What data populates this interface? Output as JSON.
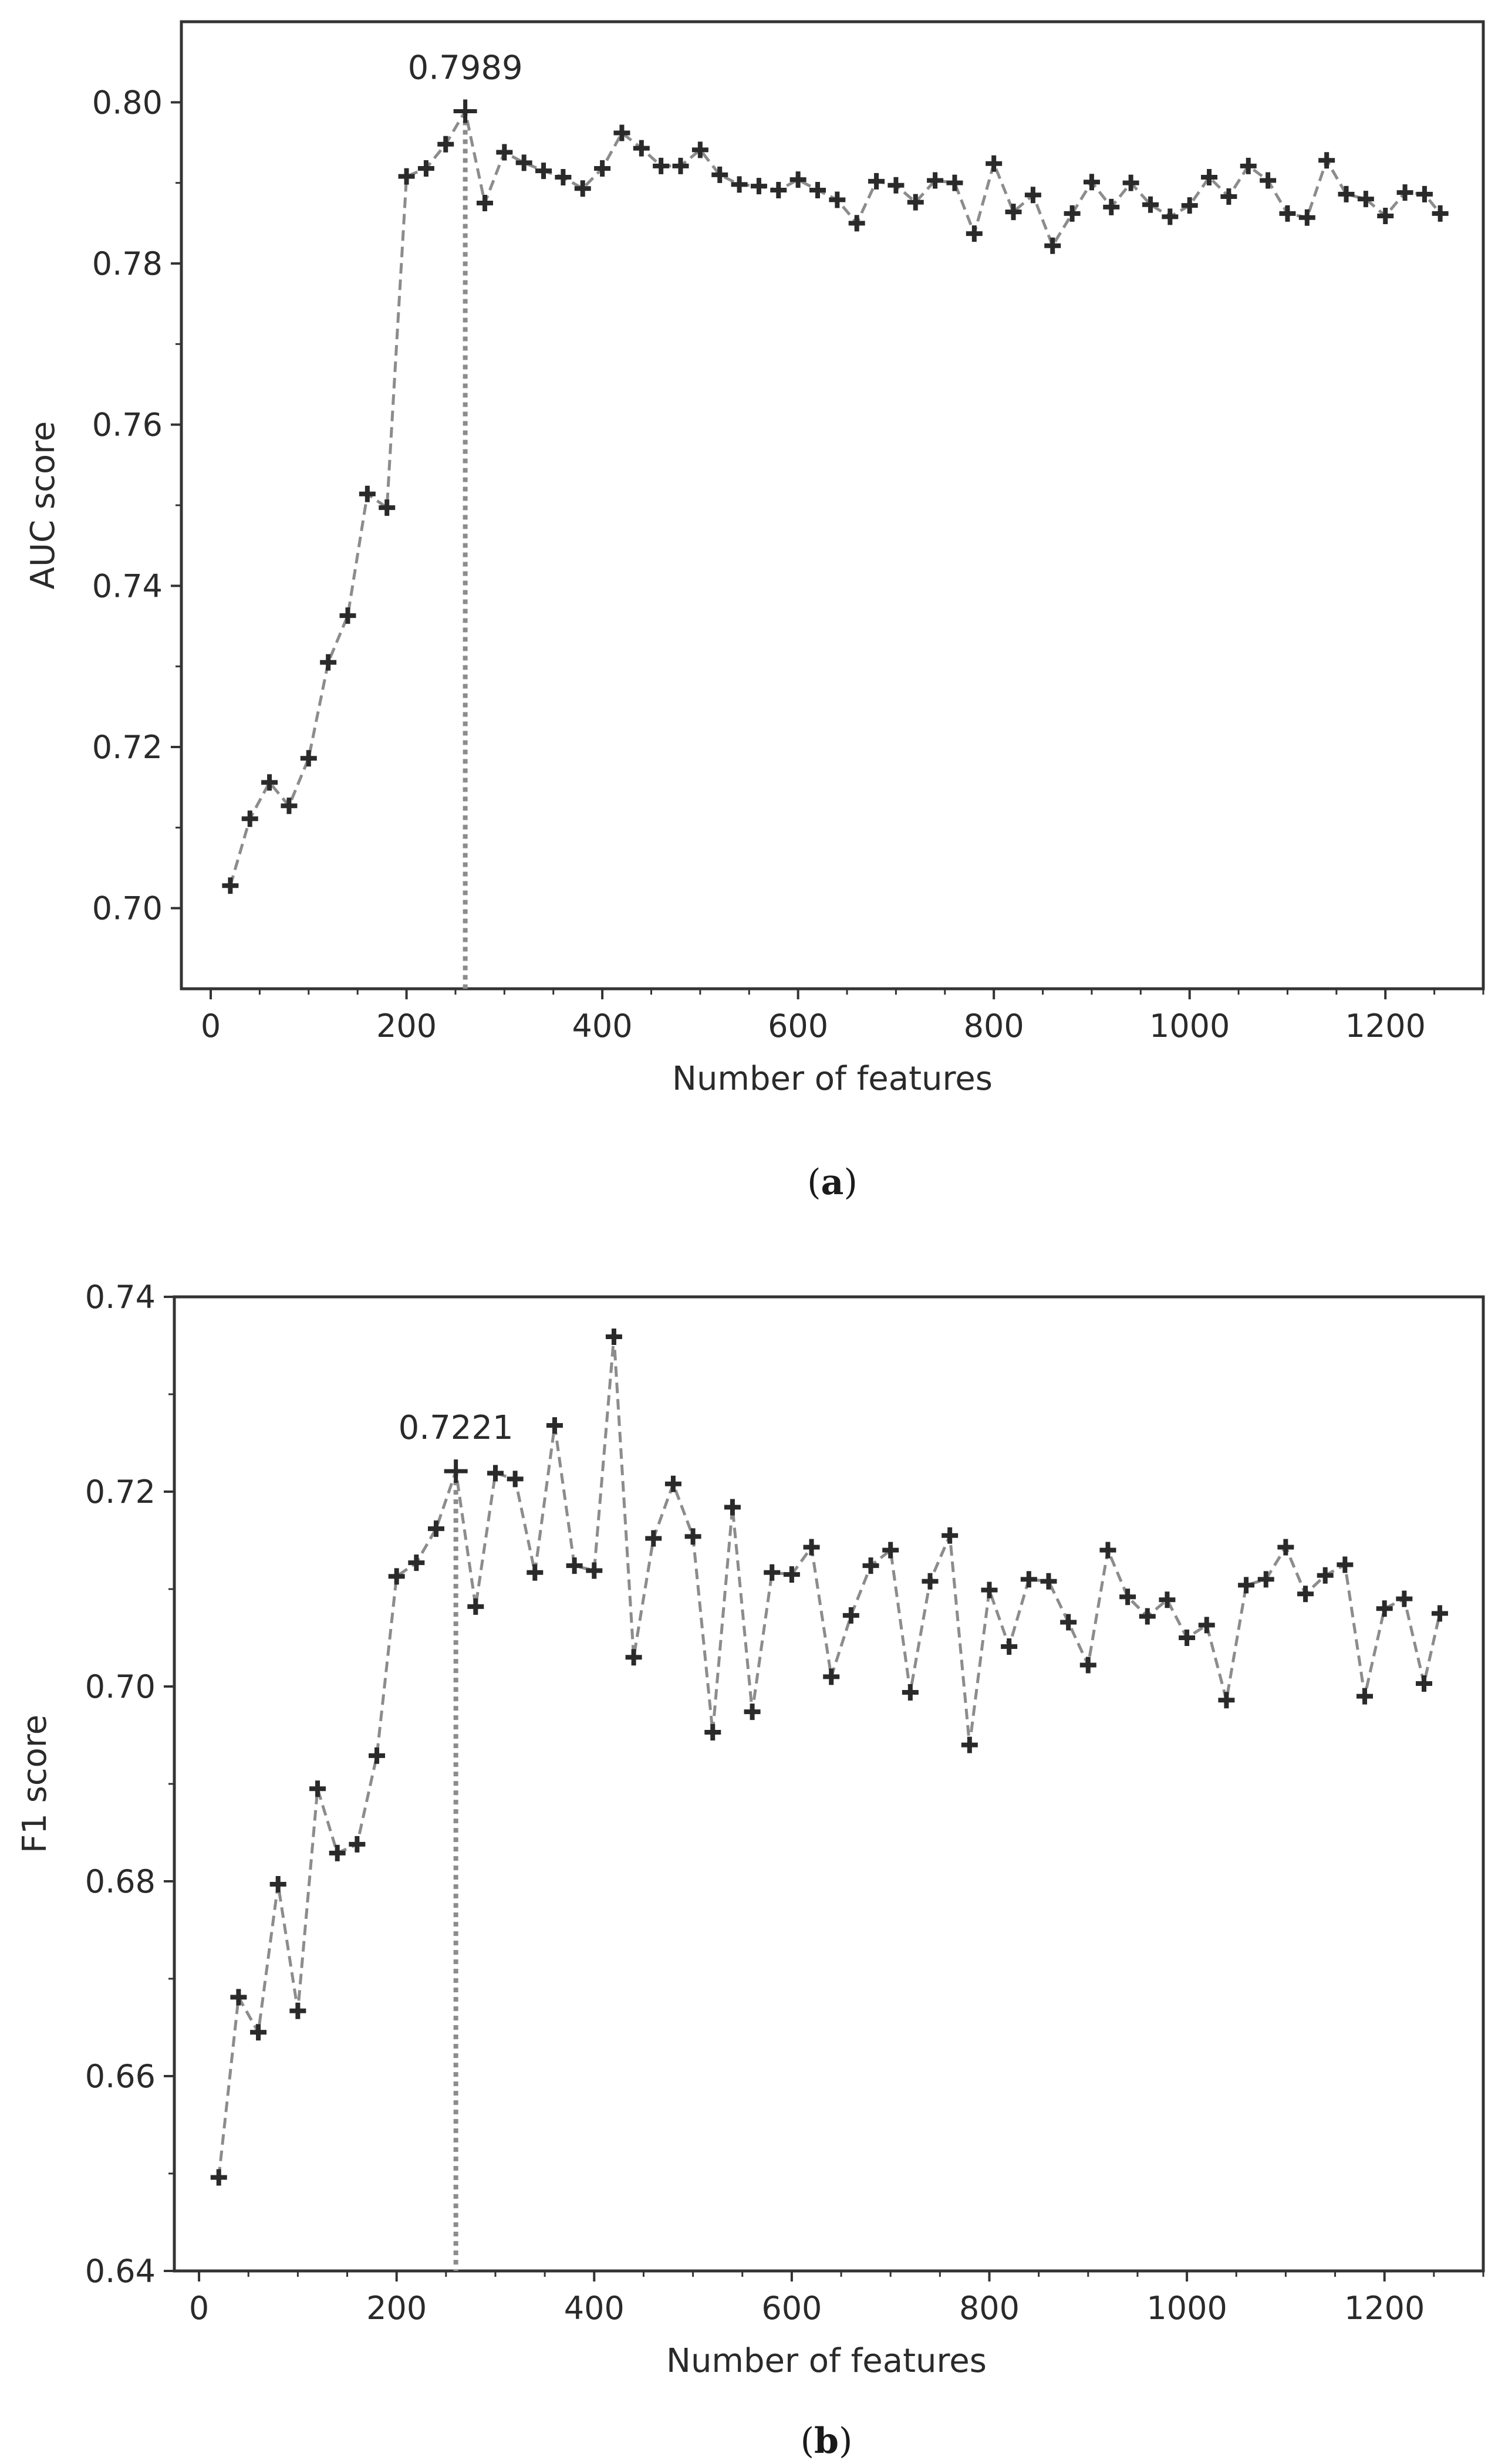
{
  "colors": {
    "frame": "#333333",
    "series_line": "#8c8c8c",
    "marker": "#2a2a2a",
    "vline": "#8c8c8c"
  },
  "chart_data": [
    {
      "type": "line",
      "panel_caption_letter": "a",
      "xlabel": "Number of features",
      "ylabel": "AUC score",
      "xlim": [
        -30,
        1300
      ],
      "ylim": [
        0.69,
        0.81
      ],
      "xticks": [
        0,
        200,
        400,
        600,
        800,
        1000,
        1200
      ],
      "xtick_labels": [
        "0",
        "200",
        "400",
        "600",
        "800",
        "1000",
        "1200"
      ],
      "yticks": [
        0.7,
        0.72,
        0.74,
        0.76,
        0.78,
        0.8
      ],
      "ytick_labels": [
        "0.70",
        "0.72",
        "0.74",
        "0.76",
        "0.78",
        "0.80"
      ],
      "peak": {
        "x": 260,
        "y": 0.7989,
        "label": "0.7989"
      },
      "series": [
        {
          "name": "AUC",
          "x": [
            20,
            40,
            60,
            80,
            100,
            120,
            140,
            160,
            180,
            200,
            220,
            240,
            260,
            280,
            300,
            320,
            340,
            360,
            380,
            400,
            420,
            440,
            460,
            480,
            500,
            520,
            540,
            560,
            580,
            600,
            620,
            640,
            660,
            680,
            700,
            720,
            740,
            760,
            780,
            800,
            820,
            840,
            860,
            880,
            900,
            920,
            940,
            960,
            980,
            1000,
            1020,
            1040,
            1060,
            1080,
            1100,
            1120,
            1140,
            1160,
            1180,
            1200,
            1220,
            1240,
            1256
          ],
          "values": [
            0.7028,
            0.7111,
            0.7156,
            0.7127,
            0.7186,
            0.7305,
            0.7363,
            0.7514,
            0.7497,
            0.7908,
            0.7918,
            0.7948,
            0.7989,
            0.7875,
            0.7938,
            0.7925,
            0.7915,
            0.7907,
            0.7893,
            0.7918,
            0.7962,
            0.7943,
            0.7921,
            0.7921,
            0.7941,
            0.791,
            0.7898,
            0.7896,
            0.7891,
            0.7904,
            0.7891,
            0.7879,
            0.785,
            0.7902,
            0.7897,
            0.7876,
            0.7903,
            0.79,
            0.7837,
            0.7924,
            0.7864,
            0.7885,
            0.7822,
            0.7862,
            0.7901,
            0.787,
            0.79,
            0.7873,
            0.7858,
            0.7872,
            0.7907,
            0.7883,
            0.7921,
            0.7903,
            0.7862,
            0.7857,
            0.7928,
            0.7886,
            0.788,
            0.7859,
            0.7888,
            0.7886,
            0.7862
          ]
        }
      ]
    },
    {
      "type": "line",
      "panel_caption_letter": "b",
      "xlabel": "Number of features",
      "ylabel": "F1 score",
      "xlim": [
        -25,
        1300
      ],
      "ylim": [
        0.64,
        0.74
      ],
      "xticks": [
        0,
        200,
        400,
        600,
        800,
        1000,
        1200
      ],
      "xtick_labels": [
        "0",
        "200",
        "400",
        "600",
        "800",
        "1000",
        "1200"
      ],
      "yticks": [
        0.64,
        0.66,
        0.68,
        0.7,
        0.72,
        0.74
      ],
      "ytick_labels": [
        "0.64",
        "0.66",
        "0.68",
        "0.70",
        "0.72",
        "0.74"
      ],
      "peak": {
        "x": 260,
        "y": 0.7221,
        "label": "0.7221"
      },
      "series": [
        {
          "name": "F1",
          "x": [
            20,
            40,
            60,
            80,
            100,
            120,
            140,
            160,
            180,
            200,
            220,
            240,
            260,
            280,
            300,
            320,
            340,
            360,
            380,
            400,
            420,
            440,
            460,
            480,
            500,
            520,
            540,
            560,
            580,
            600,
            620,
            640,
            660,
            680,
            700,
            720,
            740,
            760,
            780,
            800,
            820,
            840,
            860,
            880,
            900,
            920,
            940,
            960,
            980,
            1000,
            1020,
            1040,
            1060,
            1080,
            1100,
            1120,
            1140,
            1160,
            1180,
            1200,
            1220,
            1240,
            1256
          ],
          "values": [
            0.6496,
            0.6681,
            0.6645,
            0.6797,
            0.6667,
            0.6895,
            0.6829,
            0.6838,
            0.6929,
            0.7113,
            0.7127,
            0.7162,
            0.7221,
            0.7082,
            0.7219,
            0.7213,
            0.7117,
            0.7268,
            0.7124,
            0.7119,
            0.7359,
            0.703,
            0.7152,
            0.7208,
            0.7154,
            0.6953,
            0.7184,
            0.6974,
            0.7117,
            0.7115,
            0.7143,
            0.701,
            0.7073,
            0.7124,
            0.714,
            0.6994,
            0.7108,
            0.7155,
            0.694,
            0.7099,
            0.7041,
            0.711,
            0.7108,
            0.7066,
            0.7022,
            0.714,
            0.7092,
            0.7072,
            0.7089,
            0.705,
            0.7063,
            0.6986,
            0.7104,
            0.711,
            0.7143,
            0.7095,
            0.7114,
            0.7125,
            0.699,
            0.708,
            0.709,
            0.7003,
            0.7075
          ]
        }
      ]
    }
  ]
}
